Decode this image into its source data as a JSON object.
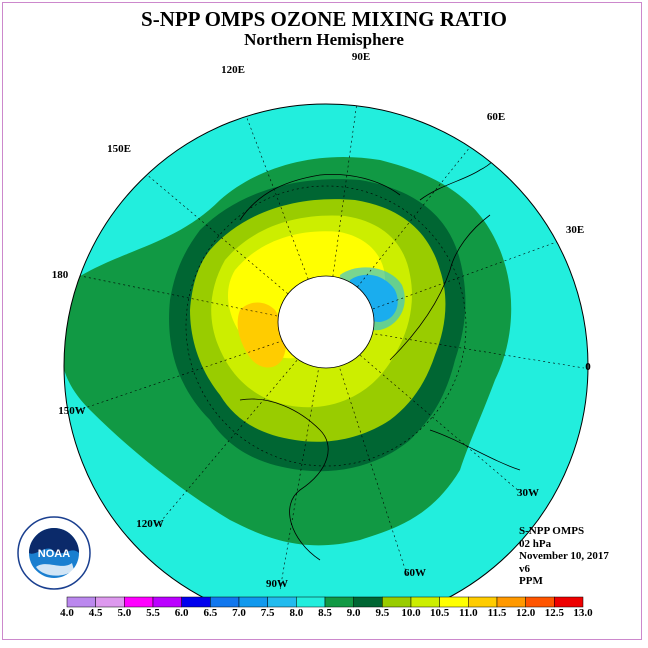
{
  "title": "S-NPP OMPS OZONE MIXING RATIO",
  "subtitle": "Northern Hemisphere",
  "longitude_labels": [
    "90E",
    "60E",
    "30E",
    "0",
    "30W",
    "60W",
    "90W",
    "120W",
    "150W",
    "180",
    "150E",
    "120E"
  ],
  "info": {
    "instrument": "S-NPP OMPS",
    "level": "02 hPa",
    "date": "November 10, 2017",
    "version": "v6",
    "units": "PPM"
  },
  "colorbar": {
    "labels": [
      "4.0",
      "4.5",
      "5.0",
      "5.5",
      "6.0",
      "6.5",
      "7.0",
      "7.5",
      "8.0",
      "8.5",
      "9.0",
      "9.5",
      "10.0",
      "10.5",
      "11.0",
      "11.5",
      "12.0",
      "12.5",
      "13.0"
    ],
    "colors": [
      "#bb88ee",
      "#dd99ee",
      "#ff00ff",
      "#bb00ff",
      "#0000ee",
      "#1177ee",
      "#1199ee",
      "#22bbee",
      "#22eedd",
      "#119944",
      "#006633",
      "#99cc00",
      "#ccee00",
      "#ffff00",
      "#ffcc00",
      "#ff9900",
      "#ff5500",
      "#ee0000",
      "#884422"
    ]
  },
  "logo": {
    "text": "NOAA",
    "ring_text": "NATIONAL OCEANIC AND ATMOSPHERIC ADMINISTRATION · U.S. DEPARTMENT OF COMMERCE"
  },
  "colors": {
    "background_field": "#22eedd",
    "frame": "#cc88cc"
  }
}
